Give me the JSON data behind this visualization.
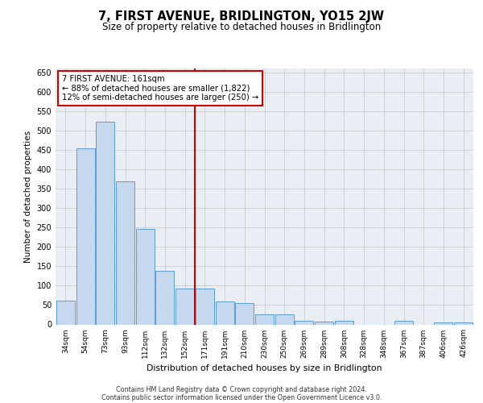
{
  "title": "7, FIRST AVENUE, BRIDLINGTON, YO15 2JW",
  "subtitle": "Size of property relative to detached houses in Bridlington",
  "xlabel": "Distribution of detached houses by size in Bridlington",
  "ylabel": "Number of detached properties",
  "footnote1": "Contains HM Land Registry data © Crown copyright and database right 2024.",
  "footnote2": "Contains public sector information licensed under the Open Government Licence v3.0.",
  "categories": [
    "34sqm",
    "54sqm",
    "73sqm",
    "93sqm",
    "112sqm",
    "132sqm",
    "152sqm",
    "171sqm",
    "191sqm",
    "210sqm",
    "230sqm",
    "250sqm",
    "269sqm",
    "289sqm",
    "308sqm",
    "328sqm",
    "348sqm",
    "367sqm",
    "387sqm",
    "406sqm",
    "426sqm"
  ],
  "values": [
    62,
    455,
    522,
    368,
    246,
    138,
    93,
    92,
    60,
    55,
    27,
    27,
    10,
    7,
    10,
    0,
    0,
    10,
    0,
    5,
    5
  ],
  "bar_color": "#c5d8ed",
  "bar_edge_color": "#5b9bd5",
  "grid_color": "#cccccc",
  "bg_color": "#e8eef4",
  "vline_color": "#cc0000",
  "annotation_text": "7 FIRST AVENUE: 161sqm\n← 88% of detached houses are smaller (1,822)\n12% of semi-detached houses are larger (250) →",
  "annotation_box_color": "#ffffff",
  "annotation_box_edge": "#cc0000",
  "ylim": [
    0,
    660
  ],
  "yticks": [
    0,
    50,
    100,
    150,
    200,
    250,
    300,
    350,
    400,
    450,
    500,
    550,
    600,
    650
  ]
}
